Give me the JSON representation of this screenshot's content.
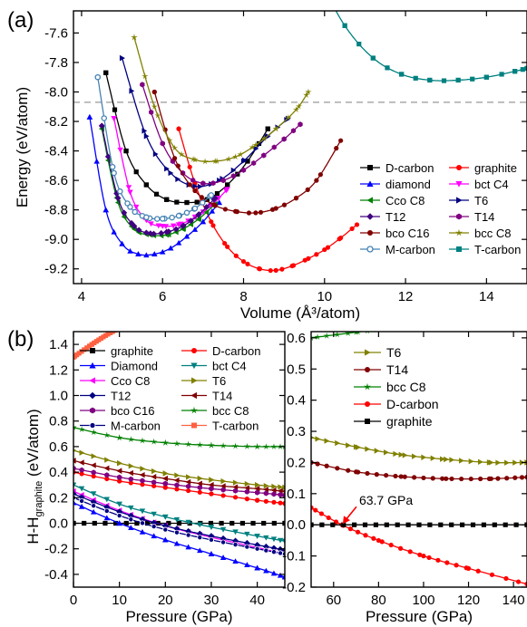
{
  "chart_data": [
    {
      "panel": "(a)",
      "type": "line",
      "xlabel": "Volume (Å³/atom)",
      "ylabel": "Energy (eV/atom)",
      "xlim": [
        3.8,
        15.0
      ],
      "ylim": [
        -9.3,
        -7.45
      ],
      "xticks": [
        4,
        6,
        8,
        10,
        12,
        14
      ],
      "yticks": [
        -9.2,
        -9.0,
        -8.8,
        -8.6,
        -8.4,
        -8.2,
        -8.0,
        -7.8,
        -7.6
      ],
      "reference_line": {
        "y": -8.07,
        "style": "dashed"
      },
      "legend_position": "lower-right",
      "series": [
        {
          "name": "D-carbon",
          "color": "#000000",
          "marker": "square",
          "x": [
            4.6,
            5.1,
            5.6,
            6.1,
            6.6,
            7.1,
            7.6,
            8.1,
            8.6
          ],
          "y": [
            -7.87,
            -8.4,
            -8.63,
            -8.73,
            -8.75,
            -8.73,
            -8.63,
            -8.47,
            -8.25
          ]
        },
        {
          "name": "graphite",
          "color": "#ff0000",
          "marker": "circle",
          "x": [
            6.4,
            6.8,
            7.2,
            7.6,
            8.0,
            8.4,
            8.8,
            9.2,
            9.6,
            10.0,
            10.4,
            10.8
          ],
          "y": [
            -8.25,
            -8.62,
            -8.88,
            -9.05,
            -9.15,
            -9.2,
            -9.21,
            -9.18,
            -9.13,
            -9.07,
            -8.99,
            -8.9
          ]
        },
        {
          "name": "diamond",
          "color": "#0000ff",
          "marker": "triangle-up",
          "x": [
            4.2,
            4.6,
            5.0,
            5.4,
            5.8,
            6.2,
            6.6,
            7.0,
            7.4
          ],
          "y": [
            -8.17,
            -8.8,
            -9.03,
            -9.1,
            -9.1,
            -9.06,
            -8.98,
            -8.88,
            -8.75
          ]
        },
        {
          "name": "bct C4",
          "color": "#ff00ff",
          "marker": "triangle-down",
          "x": [
            4.8,
            5.2,
            5.6,
            6.0,
            6.4,
            6.8,
            7.2,
            7.6
          ],
          "y": [
            -8.18,
            -8.68,
            -8.87,
            -8.91,
            -8.9,
            -8.85,
            -8.77,
            -8.66
          ]
        },
        {
          "name": "Cco C8",
          "color": "#008000",
          "marker": "triangle-left",
          "x": [
            4.5,
            4.9,
            5.3,
            5.7,
            6.1,
            6.5,
            6.9,
            7.3
          ],
          "y": [
            -8.25,
            -8.75,
            -8.93,
            -8.97,
            -8.97,
            -8.93,
            -8.86,
            -8.76
          ]
        },
        {
          "name": "T6",
          "color": "#000080",
          "marker": "triangle-right",
          "x": [
            5.0,
            5.6,
            6.2,
            6.8,
            7.4,
            8.0,
            8.6,
            9.1
          ],
          "y": [
            -7.77,
            -8.3,
            -8.55,
            -8.64,
            -8.6,
            -8.47,
            -8.3,
            -8.18
          ]
        },
        {
          "name": "T12",
          "color": "#400080",
          "marker": "diamond",
          "x": [
            4.5,
            4.9,
            5.3,
            5.7,
            6.1,
            6.5,
            6.9,
            7.3
          ],
          "y": [
            -8.23,
            -8.72,
            -8.91,
            -8.96,
            -8.95,
            -8.91,
            -8.83,
            -8.72
          ]
        },
        {
          "name": "T14",
          "color": "#800080",
          "marker": "hexagon",
          "x": [
            5.5,
            6.0,
            6.5,
            7.0,
            7.5,
            8.0,
            8.5,
            9.0,
            9.4
          ],
          "y": [
            -7.95,
            -8.35,
            -8.55,
            -8.62,
            -8.6,
            -8.53,
            -8.43,
            -8.32,
            -8.22
          ]
        },
        {
          "name": "bco C16",
          "color": "#800000",
          "marker": "circle",
          "x": [
            5.8,
            6.3,
            6.8,
            7.3,
            7.8,
            8.3,
            8.8,
            9.3,
            9.8,
            10.4
          ],
          "y": [
            -8.0,
            -8.45,
            -8.67,
            -8.77,
            -8.81,
            -8.82,
            -8.79,
            -8.72,
            -8.6,
            -8.33
          ]
        },
        {
          "name": "bcc C8",
          "color": "#808000",
          "marker": "star",
          "x": [
            5.3,
            5.8,
            6.3,
            6.8,
            7.3,
            7.8,
            8.3,
            8.8,
            9.3,
            9.6
          ],
          "y": [
            -7.63,
            -8.1,
            -8.38,
            -8.46,
            -8.47,
            -8.44,
            -8.36,
            -8.25,
            -8.12,
            -8.0
          ]
        },
        {
          "name": "M-carbon",
          "color": "#4682b4",
          "marker": "circle-open",
          "x": [
            4.4,
            4.8,
            5.2,
            5.6,
            6.0,
            6.4,
            6.8,
            7.2
          ],
          "y": [
            -7.9,
            -8.55,
            -8.78,
            -8.85,
            -8.86,
            -8.84,
            -8.79,
            -8.7
          ]
        },
        {
          "name": "T-carbon",
          "color": "#008080",
          "marker": "square",
          "x": [
            9.8,
            10.5,
            11.2,
            11.9,
            12.6,
            13.3,
            14.0,
            14.7,
            15.0
          ],
          "y": [
            -7.2,
            -7.55,
            -7.77,
            -7.88,
            -7.92,
            -7.92,
            -7.9,
            -7.86,
            -7.84
          ]
        }
      ]
    },
    {
      "panel": "(b)",
      "type": "line",
      "xlabel": "Pressure (GPa)",
      "ylabel": "H-H_graphite (eV/atom)",
      "xlim": [
        0,
        46
      ],
      "ylim": [
        -0.5,
        1.5
      ],
      "xticks": [
        0,
        10,
        20,
        30,
        40
      ],
      "yticks": [
        -0.4,
        -0.2,
        0.0,
        0.2,
        0.4,
        0.6,
        0.8,
        1.0,
        1.2,
        1.4
      ],
      "legend_position": "top",
      "series": [
        {
          "name": "graphite",
          "color": "#000000",
          "marker": "square",
          "x": [
            0,
            46
          ],
          "y": [
            0.0,
            0.0
          ]
        },
        {
          "name": "D-carbon",
          "color": "#ff0000",
          "marker": "circle",
          "x": [
            0,
            10,
            20,
            30,
            40,
            46
          ],
          "y": [
            0.4,
            0.33,
            0.28,
            0.23,
            0.18,
            0.155
          ]
        },
        {
          "name": "Diamond",
          "color": "#0000ff",
          "marker": "triangle-up",
          "x": [
            0,
            10,
            20,
            30,
            40,
            46
          ],
          "y": [
            0.16,
            0.0,
            -0.13,
            -0.24,
            -0.35,
            -0.42
          ]
        },
        {
          "name": "bct C4",
          "color": "#008080",
          "marker": "triangle-down",
          "x": [
            0,
            10,
            20,
            30,
            40,
            46
          ],
          "y": [
            0.3,
            0.15,
            0.05,
            -0.03,
            -0.1,
            -0.14
          ]
        },
        {
          "name": "Cco C8",
          "color": "#ff00ff",
          "marker": "triangle-left",
          "x": [
            0,
            10,
            20,
            30,
            40,
            46
          ],
          "y": [
            0.25,
            0.1,
            -0.02,
            -0.11,
            -0.19,
            -0.24
          ]
        },
        {
          "name": "T6",
          "color": "#808000",
          "marker": "triangle-right",
          "x": [
            0,
            10,
            20,
            30,
            40,
            46
          ],
          "y": [
            0.57,
            0.47,
            0.39,
            0.34,
            0.3,
            0.28
          ]
        },
        {
          "name": "T12",
          "color": "#000080",
          "marker": "diamond",
          "x": [
            0,
            10,
            20,
            30,
            40,
            46
          ],
          "y": [
            0.23,
            0.09,
            -0.02,
            -0.1,
            -0.17,
            -0.21
          ]
        },
        {
          "name": "T14",
          "color": "#800000",
          "marker": "triangle-left",
          "x": [
            0,
            10,
            20,
            30,
            40,
            46
          ],
          "y": [
            0.49,
            0.41,
            0.35,
            0.3,
            0.27,
            0.25
          ]
        },
        {
          "name": "bco C16",
          "color": "#800080",
          "marker": "hexagon",
          "x": [
            0,
            10,
            20,
            30,
            40,
            46
          ],
          "y": [
            0.43,
            0.36,
            0.31,
            0.27,
            0.24,
            0.22
          ]
        },
        {
          "name": "bcc C8",
          "color": "#008000",
          "marker": "star",
          "x": [
            0,
            10,
            20,
            30,
            40,
            46
          ],
          "y": [
            0.75,
            0.67,
            0.63,
            0.61,
            0.6,
            0.6
          ]
        },
        {
          "name": "M-carbon",
          "color": "#000080",
          "marker": "circle-dot",
          "x": [
            0,
            10,
            20,
            30,
            40,
            46
          ],
          "y": [
            0.2,
            0.06,
            -0.05,
            -0.13,
            -0.2,
            -0.24
          ]
        },
        {
          "name": "T-carbon",
          "color": "#ff6040",
          "marker": "square",
          "x": [
            0,
            4,
            8,
            12
          ],
          "y": [
            1.3,
            1.4,
            1.49,
            1.56
          ]
        }
      ]
    },
    {
      "panel": "(b)-right",
      "type": "line",
      "xlabel": "Pressure (GPa)",
      "ylabel": "",
      "xlim": [
        50,
        146
      ],
      "ylim": [
        -0.2,
        0.62
      ],
      "xticks": [
        60,
        80,
        100,
        120,
        140
      ],
      "yticks": [
        -0.2,
        -0.1,
        0.0,
        0.1,
        0.2,
        0.3,
        0.4,
        0.5,
        0.6
      ],
      "annotation": {
        "text": "63.7 GPa",
        "x": 63.7,
        "y": 0.0
      },
      "legend_position": "top-right",
      "series": [
        {
          "name": "T6",
          "color": "#808000",
          "marker": "triangle-right",
          "x": [
            50,
            70,
            90,
            110,
            130,
            146
          ],
          "y": [
            0.28,
            0.25,
            0.225,
            0.21,
            0.2,
            0.2
          ]
        },
        {
          "name": "T14",
          "color": "#800000",
          "marker": "circle",
          "x": [
            50,
            70,
            90,
            110,
            130,
            146
          ],
          "y": [
            0.2,
            0.17,
            0.155,
            0.148,
            0.148,
            0.153
          ]
        },
        {
          "name": "bcc C8",
          "color": "#008000",
          "marker": "star",
          "x": [
            50,
            70,
            90,
            110,
            130,
            146
          ],
          "y": [
            0.6,
            0.618,
            0.635,
            0.65,
            0.66,
            0.67
          ]
        },
        {
          "name": "D-carbon",
          "color": "#ff0000",
          "marker": "circle",
          "x": [
            50,
            63.7,
            80,
            100,
            120,
            146
          ],
          "y": [
            0.055,
            0.0,
            -0.05,
            -0.1,
            -0.14,
            -0.19
          ]
        },
        {
          "name": "graphite",
          "color": "#000000",
          "marker": "square",
          "x": [
            50,
            146
          ],
          "y": [
            0.0,
            0.0
          ]
        }
      ]
    }
  ],
  "labels": {
    "panel_a": "(a)",
    "panel_b": "(b)",
    "annotation_b": "63.7 GPa",
    "ylabel_b_main": "H-H",
    "ylabel_b_sub": "graphite",
    "ylabel_b_unit": " (eV/atom)"
  }
}
